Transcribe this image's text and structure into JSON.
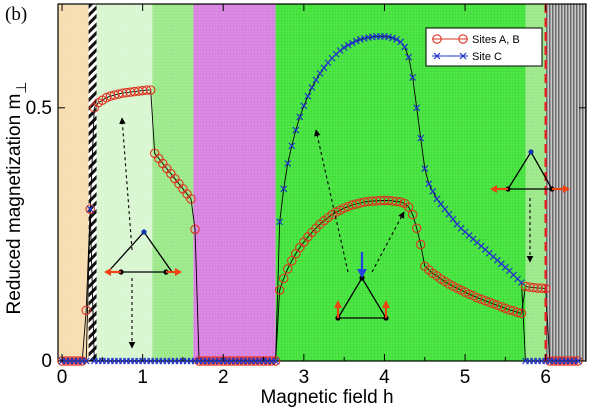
{
  "chart_data": {
    "type": "line",
    "panel_label": "(b)",
    "xlabel": "Magnetic field h",
    "ylabel": "Reduced magnetization m",
    "ylabel_subscript": "⊥",
    "xlim": [
      -0.05,
      6.5
    ],
    "ylim": [
      0,
      0.705
    ],
    "x_ticks": [
      0,
      1,
      2,
      3,
      4,
      5,
      6
    ],
    "x_tick_labels": [
      "0",
      "1",
      "2",
      "3",
      "4",
      "5",
      "6"
    ],
    "y_ticks": [
      0,
      0.5
    ],
    "y_tick_labels": [
      "0",
      "0.5"
    ],
    "legend_position": "top-right",
    "vertical_marker": 6.0,
    "regions": [
      {
        "x0": -0.05,
        "x1": 0.33,
        "color": "#f7dcb0",
        "pattern": "dots"
      },
      {
        "x0": 0.33,
        "x1": 0.43,
        "color": "#222222",
        "pattern": "hatch"
      },
      {
        "x0": 0.43,
        "x1": 1.12,
        "color": "#d8f6d0",
        "pattern": "dots"
      },
      {
        "x0": 1.12,
        "x1": 1.63,
        "color": "#9be889",
        "pattern": "dots"
      },
      {
        "x0": 1.63,
        "x1": 2.65,
        "color": "#d780e0",
        "pattern": "dots"
      },
      {
        "x0": 2.65,
        "x1": 5.75,
        "color": "#41e13a",
        "pattern": "dots"
      },
      {
        "x0": 5.75,
        "x1": 6.0,
        "color": "#9be889",
        "pattern": "dots"
      },
      {
        "x0": 6.0,
        "x1": 6.5,
        "color": "#9a9a9a",
        "pattern": "stripes"
      }
    ],
    "series": [
      {
        "name": "Sites A, B",
        "marker": "circle",
        "color": "#dd3322",
        "x": [
          0.0,
          0.05,
          0.1,
          0.15,
          0.2,
          0.25,
          0.3,
          0.35,
          0.4,
          0.45,
          0.5,
          0.55,
          0.6,
          0.65,
          0.7,
          0.75,
          0.8,
          0.85,
          0.9,
          0.95,
          1.0,
          1.05,
          1.1,
          1.15,
          1.2,
          1.25,
          1.3,
          1.35,
          1.4,
          1.45,
          1.5,
          1.55,
          1.6,
          1.65,
          1.7,
          1.75,
          1.8,
          1.85,
          1.9,
          1.95,
          2.0,
          2.05,
          2.1,
          2.15,
          2.2,
          2.25,
          2.3,
          2.35,
          2.4,
          2.45,
          2.5,
          2.55,
          2.6,
          2.65,
          2.7,
          2.75,
          2.8,
          2.85,
          2.9,
          2.95,
          3.0,
          3.05,
          3.1,
          3.15,
          3.2,
          3.25,
          3.3,
          3.35,
          3.4,
          3.45,
          3.5,
          3.55,
          3.6,
          3.65,
          3.7,
          3.75,
          3.8,
          3.85,
          3.9,
          3.95,
          4.0,
          4.05,
          4.1,
          4.15,
          4.2,
          4.25,
          4.3,
          4.35,
          4.4,
          4.45,
          4.5,
          4.55,
          4.6,
          4.65,
          4.7,
          4.75,
          4.8,
          4.85,
          4.9,
          4.95,
          5.0,
          5.05,
          5.1,
          5.15,
          5.2,
          5.25,
          5.3,
          5.35,
          5.4,
          5.45,
          5.5,
          5.55,
          5.6,
          5.65,
          5.7,
          5.75,
          5.8,
          5.85,
          5.9,
          5.95,
          6.0,
          6.05,
          6.1,
          6.15,
          6.2,
          6.25,
          6.3,
          6.35,
          6.4
        ],
        "y": [
          0,
          0,
          0,
          0,
          0,
          0,
          0.1,
          0.3,
          0.5,
          0.51,
          0.515,
          0.52,
          0.523,
          0.525,
          0.527,
          0.529,
          0.53,
          0.531,
          0.532,
          0.533,
          0.534,
          0.535,
          0.535,
          0.41,
          0.4,
          0.39,
          0.38,
          0.37,
          0.36,
          0.35,
          0.34,
          0.33,
          0.32,
          0.26,
          0,
          0,
          0,
          0,
          0,
          0,
          0,
          0,
          0,
          0,
          0,
          0,
          0,
          0,
          0,
          0,
          0,
          0,
          0,
          0,
          0.14,
          0.163,
          0.182,
          0.198,
          0.212,
          0.224,
          0.235,
          0.245,
          0.254,
          0.262,
          0.27,
          0.277,
          0.283,
          0.289,
          0.294,
          0.298,
          0.302,
          0.305,
          0.308,
          0.31,
          0.312,
          0.314,
          0.315,
          0.316,
          0.316,
          0.317,
          0.317,
          0.317,
          0.316,
          0.315,
          0.314,
          0.311,
          0.304,
          0.289,
          0.262,
          0.23,
          0.187,
          0.18,
          0.173,
          0.168,
          0.162,
          0.157,
          0.152,
          0.148,
          0.144,
          0.14,
          0.136,
          0.132,
          0.129,
          0.125,
          0.122,
          0.119,
          0.116,
          0.113,
          0.11,
          0.107,
          0.104,
          0.101,
          0.099,
          0.096,
          0.094,
          0.147,
          0.146,
          0.145,
          0.144,
          0.144,
          0.143,
          0,
          0,
          0,
          0,
          0,
          0,
          0,
          0
        ]
      },
      {
        "name": "Site C",
        "marker": "x",
        "color": "#2233cc",
        "x": [
          0.0,
          0.05,
          0.1,
          0.15,
          0.2,
          0.25,
          0.3,
          0.35,
          0.4,
          0.45,
          0.5,
          0.55,
          0.6,
          0.65,
          0.7,
          0.75,
          0.8,
          0.85,
          0.9,
          0.95,
          1.0,
          1.05,
          1.1,
          1.15,
          1.2,
          1.25,
          1.3,
          1.35,
          1.4,
          1.45,
          1.5,
          1.55,
          1.6,
          1.65,
          1.7,
          1.75,
          1.8,
          1.85,
          1.9,
          1.95,
          2.0,
          2.05,
          2.1,
          2.15,
          2.2,
          2.25,
          2.3,
          2.35,
          2.4,
          2.45,
          2.5,
          2.55,
          2.6,
          2.65,
          2.7,
          2.75,
          2.8,
          2.85,
          2.9,
          2.95,
          3.0,
          3.05,
          3.1,
          3.15,
          3.2,
          3.25,
          3.3,
          3.35,
          3.4,
          3.45,
          3.5,
          3.55,
          3.6,
          3.65,
          3.7,
          3.75,
          3.8,
          3.85,
          3.9,
          3.95,
          4.0,
          4.05,
          4.1,
          4.15,
          4.2,
          4.25,
          4.3,
          4.35,
          4.4,
          4.45,
          4.5,
          4.55,
          4.6,
          4.65,
          4.7,
          4.75,
          4.8,
          4.85,
          4.9,
          4.95,
          5.0,
          5.05,
          5.1,
          5.15,
          5.2,
          5.25,
          5.3,
          5.35,
          5.4,
          5.45,
          5.5,
          5.55,
          5.6,
          5.65,
          5.7,
          5.75,
          5.8,
          5.85,
          5.9,
          5.95,
          6.0,
          6.05,
          6.1,
          6.15,
          6.2,
          6.25,
          6.3,
          6.35,
          6.4
        ],
        "y": [
          0,
          0,
          0,
          0,
          0,
          0,
          0,
          0.3,
          0,
          0,
          0,
          0,
          0,
          0,
          0,
          0,
          0,
          0,
          0,
          0,
          0,
          0,
          0,
          0,
          0,
          0,
          0,
          0,
          0,
          0,
          0,
          0,
          0,
          0,
          0,
          0,
          0,
          0,
          0,
          0,
          0,
          0,
          0,
          0,
          0,
          0,
          0,
          0,
          0,
          0,
          0,
          0,
          0,
          0,
          0.275,
          0.34,
          0.39,
          0.425,
          0.456,
          0.482,
          0.504,
          0.523,
          0.54,
          0.555,
          0.568,
          0.579,
          0.589,
          0.598,
          0.606,
          0.613,
          0.619,
          0.624,
          0.628,
          0.632,
          0.635,
          0.637,
          0.639,
          0.64,
          0.641,
          0.641,
          0.641,
          0.64,
          0.638,
          0.635,
          0.63,
          0.62,
          0.6,
          0.56,
          0.5,
          0.44,
          0.38,
          0.35,
          0.335,
          0.32,
          0.31,
          0.3,
          0.29,
          0.28,
          0.27,
          0.262,
          0.255,
          0.248,
          0.241,
          0.234,
          0.227,
          0.22,
          0.213,
          0.206,
          0.199,
          0.192,
          0.185,
          0.178,
          0.17,
          0.162,
          0.155,
          0,
          0,
          0,
          0,
          0,
          0,
          0,
          0,
          0,
          0,
          0,
          0,
          0,
          0
        ]
      }
    ]
  }
}
